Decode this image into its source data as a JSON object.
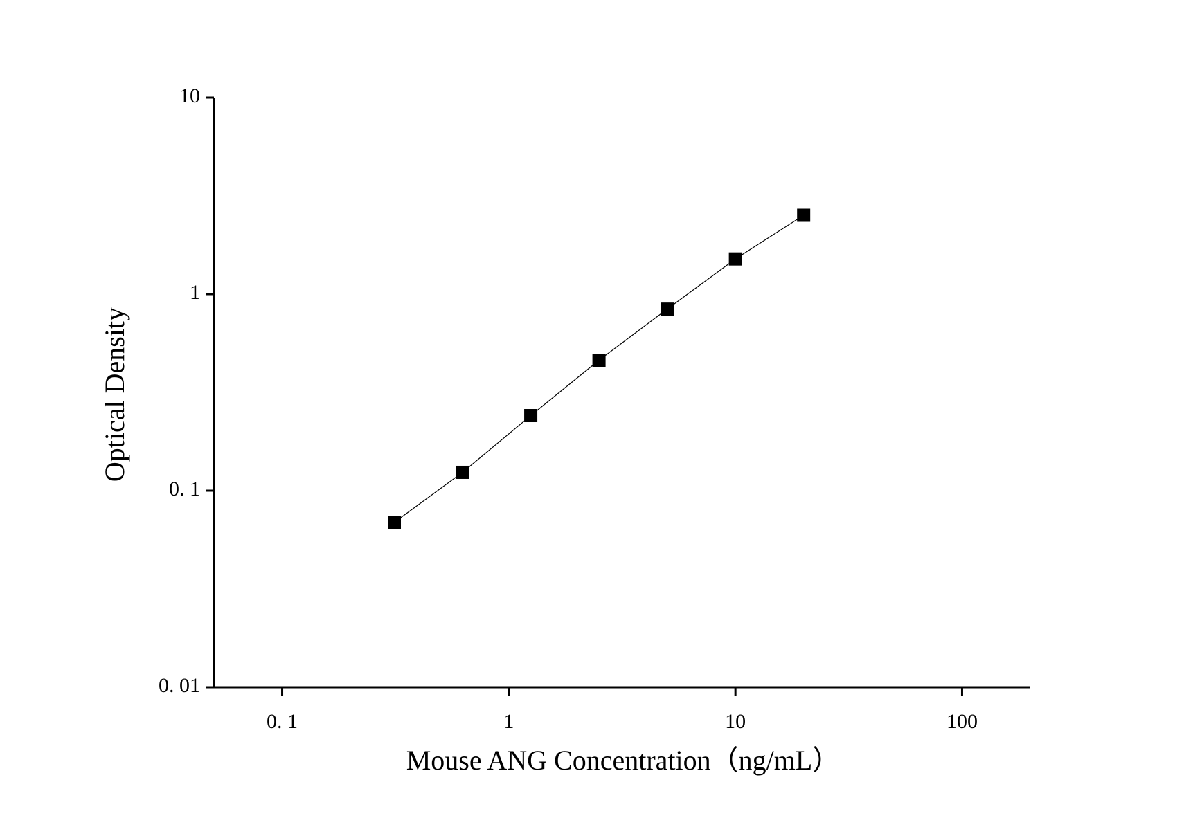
{
  "chart_data": {
    "type": "line",
    "marker": "square",
    "x_label": "Mouse ANG Concentration（ng/mL）",
    "y_label": "Optical Density",
    "x": [
      0.3125,
      0.625,
      1.25,
      2.5,
      5,
      10,
      20
    ],
    "values": [
      0.069,
      0.124,
      0.241,
      0.461,
      0.839,
      1.51,
      2.52
    ],
    "color": "#000000",
    "xscale": "log",
    "yscale": "log",
    "xlim": [
      0.05,
      200
    ],
    "ylim": [
      0.01,
      10
    ],
    "xticks": [
      {
        "value": 0.1,
        "label": "0. 1"
      },
      1,
      10,
      100
    ],
    "yticks": [
      {
        "value": 0.01,
        "label": "0. 01"
      },
      {
        "value": 0.1,
        "label": "0. 1"
      },
      1,
      10
    ],
    "grid": false
  }
}
